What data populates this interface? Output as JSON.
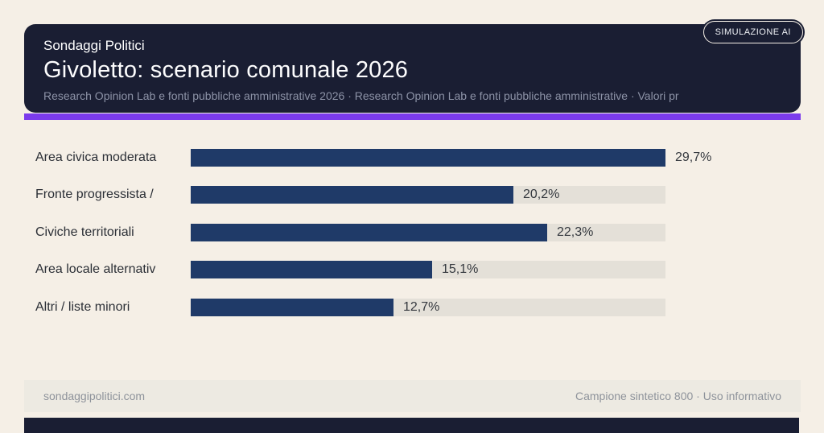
{
  "badge": {
    "label": "SIMULAZIONE AI"
  },
  "header": {
    "kicker": "Sondaggi Politici",
    "title": "Givoletto: scenario comunale 2026",
    "subtitle": "Research Opinion Lab e fonti pubbliche amministrative 2026 · Research Opinion Lab e fonti pubbliche amministrative · Valori pr"
  },
  "chart_data": {
    "type": "bar",
    "orientation": "horizontal",
    "title": "Givoletto: scenario comunale 2026",
    "categories": [
      "Area civica moderata",
      "Fronte progressista /",
      "Civiche territoriali",
      "Area locale alternativ",
      "Altri / liste minori"
    ],
    "values": [
      29.7,
      20.2,
      22.3,
      15.1,
      12.7
    ],
    "value_labels": [
      "29,7%",
      "20,2%",
      "22,3%",
      "15,1%",
      "12,7%"
    ],
    "xlim": [
      0,
      29.7
    ],
    "grid": false,
    "legend": false,
    "bar_color": "#1f3a68",
    "track_color": "#e4e0d8"
  },
  "footer": {
    "left": "sondaggipolitici.com",
    "right": "Campione sintetico 800 · Uso informativo"
  },
  "colors": {
    "page_background": "#f5efe6",
    "card_background": "#1a1e33",
    "accent_purple": "#7b3bec",
    "bar_navy": "#1f3a68",
    "bar_track": "#e4e0d8",
    "footer_band": "#edeae2"
  }
}
